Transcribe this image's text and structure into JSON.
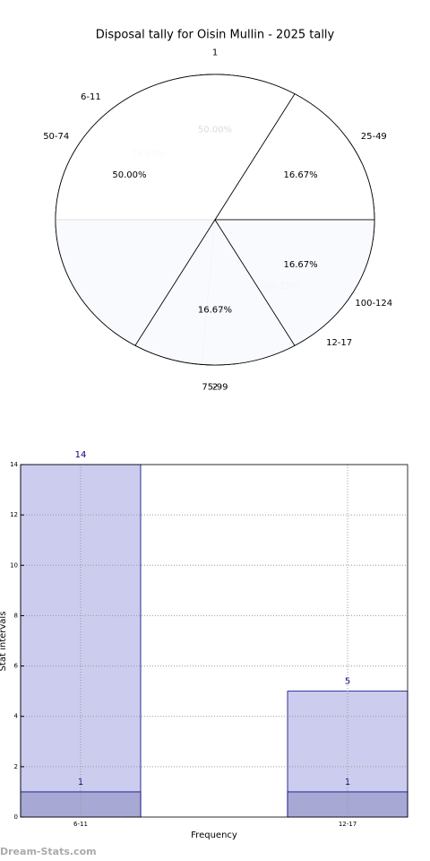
{
  "chart_data": [
    {
      "type": "pie",
      "title": "Disposal tally for Oisin Mullin - 2025 tally",
      "categories": [
        "6-11",
        "12-17"
      ],
      "values": [
        73.68,
        26.32
      ],
      "value_labels": [
        "73.68%",
        "26.32%"
      ],
      "colors": [
        "#ffffff",
        "#eef3ff"
      ]
    },
    {
      "type": "pie",
      "categories": [
        "1",
        "2"
      ],
      "values": [
        50,
        50
      ],
      "value_labels": [
        "50.00%",
        "50.00%"
      ],
      "colors": [
        "#ffffff",
        "#c6d7f7"
      ]
    },
    {
      "type": "pie",
      "categories": [
        "25-49",
        "50-74",
        "75-99",
        "100-124"
      ],
      "values": [
        16.67,
        50,
        16.67,
        16.67
      ],
      "value_labels": [
        "16.67%",
        "50.00%",
        "16.67%",
        "16.67%"
      ],
      "colors": [
        "#ffffff",
        "#ffffff",
        "#ffffff",
        "#ffffff"
      ]
    },
    {
      "type": "bar",
      "x_label": "Frequency",
      "y_label": "Stat intervals",
      "categories": [
        "6-11",
        "12-17"
      ],
      "series": [
        {
          "color": "#ccccee",
          "values": [
            14,
            5
          ]
        },
        {
          "color": "#a8a8d4",
          "values": [
            1,
            1
          ]
        }
      ],
      "ylim": [
        0,
        14
      ],
      "yticks": [
        0,
        2,
        4,
        6,
        8,
        10,
        12,
        14
      ],
      "grid": true
    }
  ],
  "watermark": "Dream-Stats.com"
}
